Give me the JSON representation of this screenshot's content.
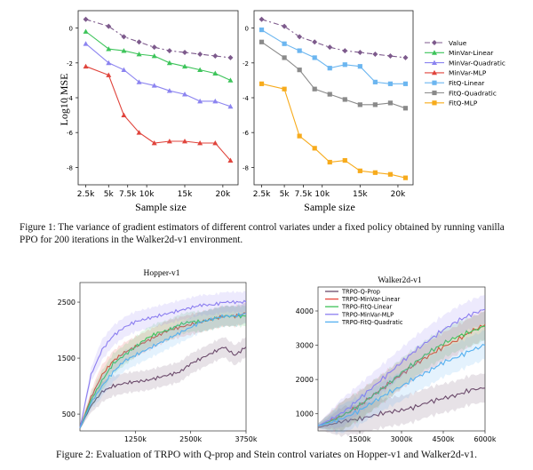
{
  "figure1": {
    "ylabel": "Log10 MSE",
    "xlabel_left": "Sample size",
    "xlabel_right": "Sample size",
    "x_ticks": [
      "2.5k",
      "5k",
      "7.5k",
      "10k",
      "15k",
      "20k"
    ],
    "y_ticks": [
      "0",
      "-2",
      "-4",
      "-6",
      "-8"
    ],
    "caption": "Figure 1:  The variance of gradient estimators of different control variates under a fixed policy obtained by running vanilla PPO for 200 iterations in the Walker2d-v1 environment.",
    "legend": [
      {
        "label": "Value",
        "color": "#7d5a8c",
        "marker": "diamond",
        "dash": "6,3,2,3"
      },
      {
        "label": "MinVar-Linear",
        "color": "#3dc45a",
        "marker": "triangle",
        "dash": ""
      },
      {
        "label": "MinVar-Quadratic",
        "color": "#8c84f0",
        "marker": "triangle",
        "dash": ""
      },
      {
        "label": "MinVar-MLP",
        "color": "#e0443c",
        "marker": "triangle",
        "dash": ""
      },
      {
        "label": "FitQ-Linear",
        "color": "#6cb6f0",
        "marker": "square",
        "dash": ""
      },
      {
        "label": "FitQ-Quadratic",
        "color": "#8a8a8a",
        "marker": "square",
        "dash": ""
      },
      {
        "label": "FitQ-MLP",
        "color": "#f7ab1c",
        "marker": "square",
        "dash": ""
      }
    ]
  },
  "figure2": {
    "caption": "Figure 2: Evaluation of TRPO with Q-prop and Stein control variates on Hopper-v1 and Walker2d-v1.",
    "left_title": "Hopper-v1",
    "right_title": "Walker2d-v1",
    "left_x_ticks": [
      "1250k",
      "2500k",
      "3750k"
    ],
    "left_y_ticks": [
      "2500",
      "1500",
      "500"
    ],
    "right_x_ticks": [
      "1500k",
      "3000k",
      "4500k",
      "6000k"
    ],
    "right_y_ticks": [
      "4000",
      "3000",
      "2000",
      "1000"
    ],
    "legend": [
      {
        "label": "TRPO-Q-Prop",
        "color": "#6b4a6b"
      },
      {
        "label": "TRPO-MinVar-Linear",
        "color": "#e8453c"
      },
      {
        "label": "TRPO-FitQ-Linear",
        "color": "#3fc25a"
      },
      {
        "label": "TRPO-MinVar-MLP",
        "color": "#8c7ef0"
      },
      {
        "label": "TRPO-FitQ-Quadratic",
        "color": "#55b0f0"
      }
    ]
  },
  "chart_data": [
    {
      "type": "line",
      "title": "",
      "xlabel": "Sample size",
      "ylabel": "Log10 MSE",
      "x": [
        2,
        5,
        7,
        9,
        11,
        13,
        15,
        17,
        19,
        21
      ],
      "ylim": [
        -9,
        1
      ],
      "series": [
        {
          "name": "Value",
          "values": [
            0.5,
            0.1,
            -0.5,
            -0.8,
            -1.1,
            -1.3,
            -1.4,
            -1.5,
            -1.6,
            -1.7
          ]
        },
        {
          "name": "MinVar-Linear",
          "values": [
            -0.2,
            -1.2,
            -1.3,
            -1.5,
            -1.6,
            -2.0,
            -2.2,
            -2.4,
            -2.6,
            -3.0
          ]
        },
        {
          "name": "MinVar-Quadratic",
          "values": [
            -0.9,
            -2.0,
            -2.4,
            -3.1,
            -3.3,
            -3.6,
            -3.8,
            -4.2,
            -4.2,
            -4.5
          ]
        },
        {
          "name": "MinVar-MLP",
          "values": [
            -2.2,
            -2.7,
            -5.0,
            -6.0,
            -6.6,
            -6.5,
            -6.5,
            -6.6,
            -6.6,
            -7.6
          ]
        }
      ]
    },
    {
      "type": "line",
      "title": "",
      "xlabel": "Sample size",
      "ylabel": "",
      "x": [
        2,
        5,
        7,
        9,
        11,
        13,
        15,
        17,
        19,
        21
      ],
      "ylim": [
        -9,
        1
      ],
      "series": [
        {
          "name": "Value",
          "values": [
            0.5,
            0.1,
            -0.5,
            -0.8,
            -1.1,
            -1.3,
            -1.4,
            -1.5,
            -1.6,
            -1.7
          ]
        },
        {
          "name": "FitQ-Linear",
          "values": [
            -0.1,
            -0.9,
            -1.3,
            -1.7,
            -2.3,
            -2.1,
            -2.2,
            -3.1,
            -3.2,
            -3.2
          ]
        },
        {
          "name": "FitQ-Quadratic",
          "values": [
            -0.8,
            -1.7,
            -2.4,
            -3.5,
            -3.8,
            -4.1,
            -4.4,
            -4.4,
            -4.3,
            -4.6
          ]
        },
        {
          "name": "FitQ-MLP",
          "values": [
            -3.2,
            -3.5,
            -6.2,
            -6.9,
            -7.7,
            -7.6,
            -8.2,
            -8.3,
            -8.4,
            -8.6
          ]
        }
      ]
    },
    {
      "type": "line",
      "title": "Hopper-v1",
      "xlabel": "",
      "ylabel": "",
      "x": [
        0,
        250,
        500,
        750,
        1000,
        1250,
        1500,
        1750,
        2000,
        2250,
        2500,
        2750,
        3000,
        3250,
        3500,
        3750
      ],
      "xlim": [
        0,
        3750
      ],
      "ylim": [
        200,
        2850
      ],
      "series": [
        {
          "name": "TRPO-Q-Prop",
          "values": [
            250,
            650,
            900,
            1000,
            1050,
            1080,
            1100,
            1150,
            1200,
            1250,
            1400,
            1500,
            1600,
            1700,
            1550,
            1700
          ]
        },
        {
          "name": "TRPO-MinVar-Linear",
          "values": [
            250,
            800,
            1200,
            1450,
            1600,
            1700,
            1800,
            1900,
            2000,
            2050,
            2100,
            2150,
            2200,
            2250,
            2250,
            2300
          ]
        },
        {
          "name": "TRPO-FitQ-Linear",
          "values": [
            250,
            750,
            1100,
            1400,
            1550,
            1700,
            1850,
            1950,
            2000,
            2100,
            2150,
            2150,
            2200,
            2250,
            2250,
            2250
          ]
        },
        {
          "name": "TRPO-MinVar-MLP",
          "values": [
            250,
            1200,
            1650,
            1900,
            2050,
            2150,
            2200,
            2250,
            2300,
            2350,
            2400,
            2450,
            2450,
            2500,
            2500,
            2500
          ]
        },
        {
          "name": "TRPO-FitQ-Quadratic",
          "values": [
            250,
            700,
            1000,
            1250,
            1450,
            1550,
            1650,
            1750,
            1850,
            1950,
            2050,
            2150,
            2200,
            2250,
            2250,
            2300
          ]
        }
      ]
    },
    {
      "type": "line",
      "title": "Walker2d-v1",
      "xlabel": "",
      "ylabel": "",
      "x": [
        0,
        500,
        1000,
        1500,
        2000,
        2500,
        3000,
        3500,
        4000,
        4500,
        5000,
        5500,
        6000
      ],
      "xlim": [
        0,
        6000
      ],
      "ylim": [
        500,
        4700
      ],
      "series": [
        {
          "name": "TRPO-Q-Prop",
          "values": [
            600,
            700,
            800,
            850,
            950,
            1050,
            1100,
            1200,
            1350,
            1450,
            1550,
            1700,
            1750
          ]
        },
        {
          "name": "TRPO-MinVar-Linear",
          "values": [
            650,
            800,
            1000,
            1250,
            1550,
            1850,
            2150,
            2450,
            2700,
            2950,
            3150,
            3400,
            3600
          ]
        },
        {
          "name": "TRPO-FitQ-Linear",
          "values": [
            650,
            800,
            1000,
            1250,
            1550,
            1850,
            2200,
            2500,
            2800,
            3050,
            3250,
            3400,
            3550
          ]
        },
        {
          "name": "TRPO-MinVar-MLP",
          "values": [
            650,
            850,
            1100,
            1450,
            1800,
            2150,
            2500,
            2850,
            3150,
            3450,
            3700,
            3900,
            4050
          ]
        },
        {
          "name": "TRPO-FitQ-Quadratic",
          "values": [
            650,
            750,
            900,
            1100,
            1350,
            1600,
            1800,
            2050,
            2250,
            2500,
            2650,
            2850,
            3000
          ]
        }
      ]
    }
  ]
}
